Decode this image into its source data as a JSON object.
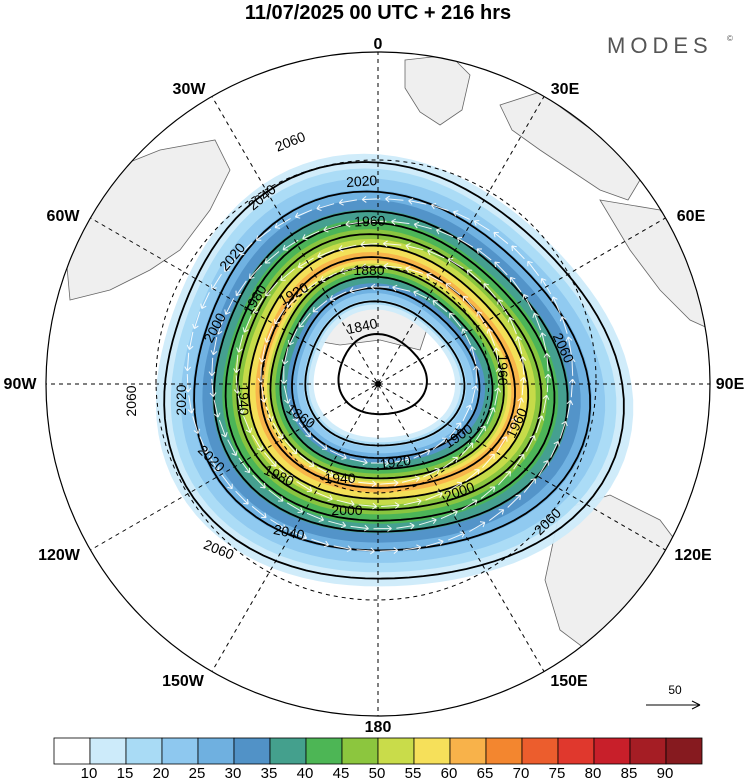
{
  "title": "11/07/2025  00 UTC  + 216 hrs",
  "brand": {
    "name": "MODES",
    "mark": "©"
  },
  "longitude_labels": [
    "0",
    "30E",
    "60E",
    "90E",
    "120E",
    "150E",
    "180",
    "150W",
    "120W",
    "90W",
    "60W",
    "30W"
  ],
  "contour_labels": [
    "2060",
    "2040",
    "2020",
    "1960",
    "1880",
    "1840",
    "1920",
    "1980",
    "2000",
    "2020",
    "1860",
    "1940",
    "1920",
    "1900",
    "1960",
    "1940",
    "1980",
    "2000",
    "2000",
    "2060",
    "2040",
    "2060",
    "2060",
    "2020",
    "2020",
    "1960",
    "2060"
  ],
  "colorbar": {
    "labels": [
      "10",
      "15",
      "20",
      "25",
      "30",
      "35",
      "40",
      "45",
      "50",
      "55",
      "60",
      "65",
      "70",
      "75",
      "80",
      "85",
      "90"
    ],
    "colors": [
      "#ffffff",
      "#cdebfa",
      "#a9dbf5",
      "#8ec8ef",
      "#6fb0e0",
      "#5192c7",
      "#44a08d",
      "#4db655",
      "#8cc63e",
      "#c9dc4a",
      "#f6e05a",
      "#f8b24a",
      "#f3862f",
      "#ec5d2d",
      "#e0382d",
      "#c81f2a",
      "#a51d24",
      "#861a1f"
    ]
  },
  "vector_legend": {
    "label": "50"
  },
  "jet_shading": {
    "outer_radius_factor": [
      1.35,
      1.26,
      1.2,
      1.13,
      1.07,
      1.01,
      0.95,
      0.89,
      0.83,
      0.79,
      0.75,
      0.72
    ],
    "inner_radius_factor": [
      0.4,
      0.43,
      0.46,
      0.5,
      0.53,
      0.56,
      0.6,
      0.63,
      0.66,
      0.68,
      0.7,
      0.715
    ],
    "colors": [
      "#cdebfa",
      "#a9dbf5",
      "#8ec8ef",
      "#6fb0e0",
      "#5192c7",
      "#44a08d",
      "#4db655",
      "#8cc63e",
      "#c9dc4a",
      "#f6e05a",
      "#f8b24a",
      "#f3862f"
    ]
  },
  "height_contours": {
    "values": [
      1840,
      1860,
      1880,
      1900,
      1920,
      1940,
      1960,
      1980,
      2000,
      2020,
      2040,
      2060
    ],
    "radius_factor": [
      0.25,
      0.45,
      0.53,
      0.6,
      0.66,
      0.72,
      0.79,
      0.86,
      0.93,
      1.0,
      1.12,
      1.3
    ]
  }
}
